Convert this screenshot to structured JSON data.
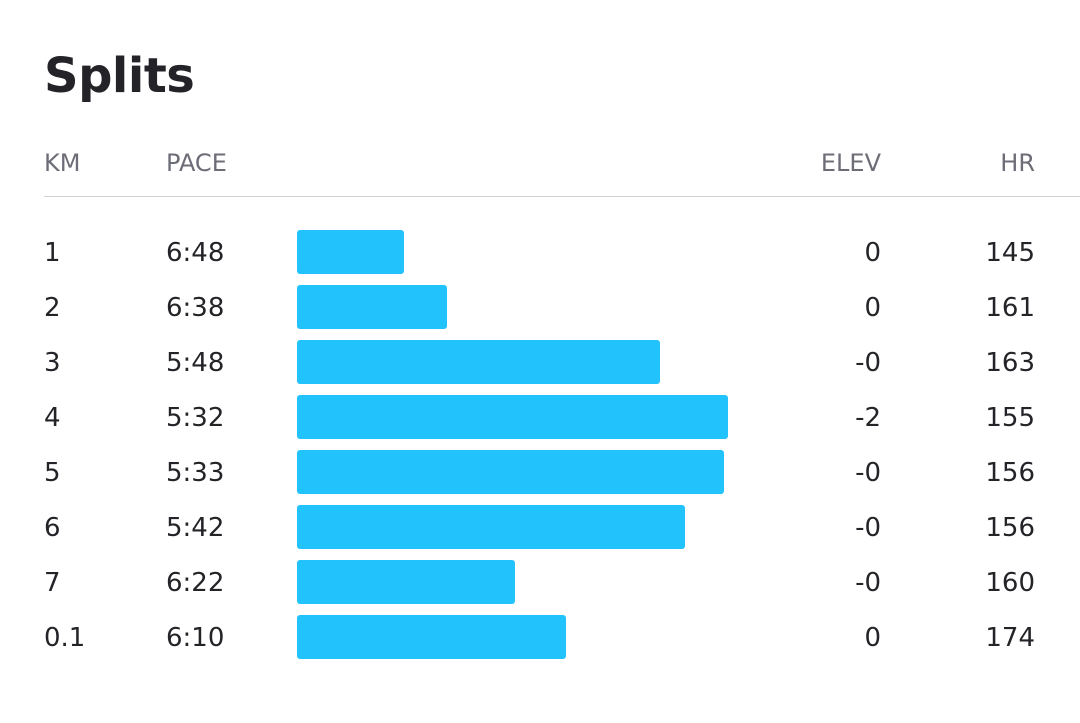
{
  "header": {
    "title": "Splits"
  },
  "table": {
    "columns": [
      "KM",
      "PACE",
      "ELEV",
      "HR"
    ],
    "rows": [
      {
        "km": "1",
        "pace": "6:48",
        "elev": "0",
        "hr": "145"
      },
      {
        "km": "2",
        "pace": "6:38",
        "elev": "0",
        "hr": "161"
      },
      {
        "km": "3",
        "pace": "5:48",
        "elev": "-0",
        "hr": "163"
      },
      {
        "km": "4",
        "pace": "5:32",
        "elev": "-2",
        "hr": "155"
      },
      {
        "km": "5",
        "pace": "5:33",
        "elev": "-0",
        "hr": "156"
      },
      {
        "km": "6",
        "pace": "5:42",
        "elev": "-0",
        "hr": "156"
      },
      {
        "km": "7",
        "pace": "6:22",
        "elev": "-0",
        "hr": "160"
      },
      {
        "km": "0.1",
        "pace": "6:10",
        "elev": "0",
        "hr": "174"
      }
    ]
  }
}
